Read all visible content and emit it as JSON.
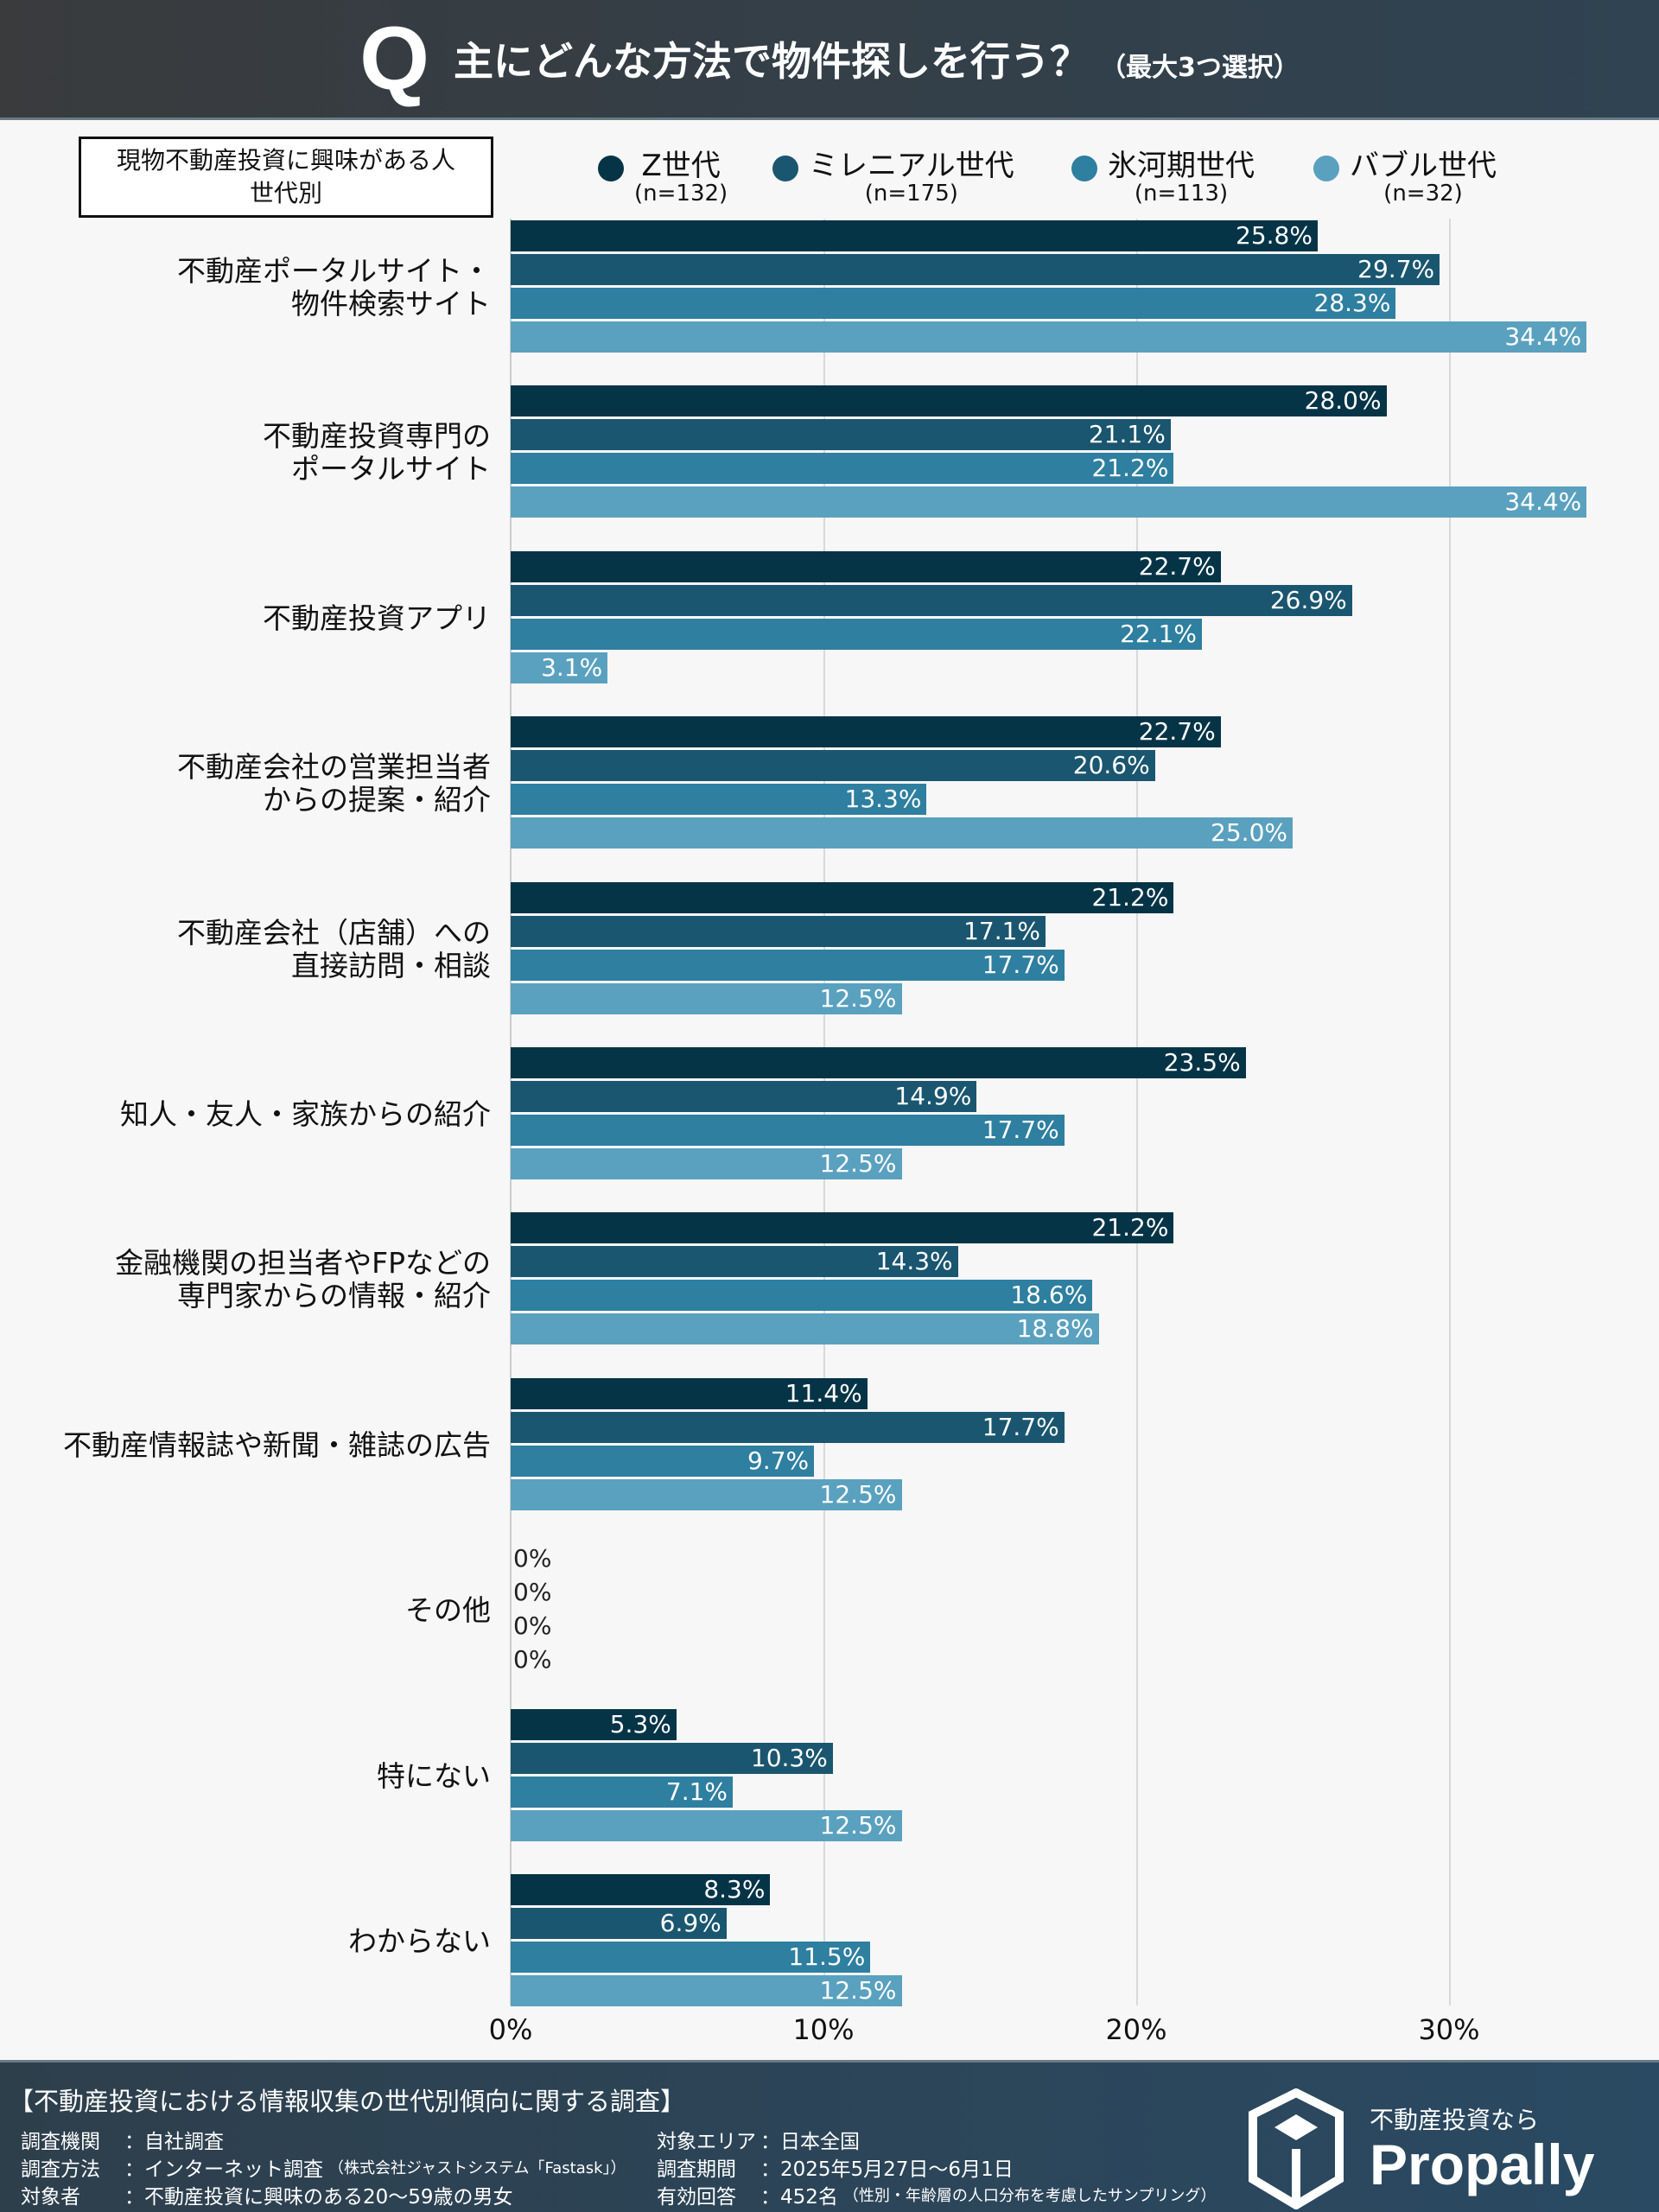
{
  "header": {
    "q": "Q",
    "title": "主にどんな方法で物件探しを行う？",
    "note": "（最大3つ選択）"
  },
  "legend_box": {
    "line1": "現物不動産投資に興味がある人",
    "line2": "世代別"
  },
  "chart_data": {
    "type": "bar",
    "orientation": "horizontal",
    "title": "主にどんな方法で物件探しを行う？",
    "xlim": [
      0,
      35
    ],
    "x_ticks": [
      "0%",
      "10%",
      "20%",
      "30%"
    ],
    "grid": true,
    "legend_placement": "top",
    "series": [
      {
        "name": "Z世代",
        "n": "(n=132)",
        "color": "#053447",
        "values": [
          25.8,
          28.0,
          22.7,
          22.7,
          21.2,
          23.5,
          21.2,
          11.4,
          0,
          5.3,
          8.3
        ]
      },
      {
        "name": "ミレニアル世代",
        "n": "(n=175)",
        "color": "#1a566f",
        "values": [
          29.7,
          21.1,
          26.9,
          20.6,
          17.1,
          14.9,
          14.3,
          17.7,
          0,
          10.3,
          6.9
        ]
      },
      {
        "name": "氷河期世代",
        "n": "(n=113)",
        "color": "#2e7fa0",
        "values": [
          28.3,
          21.2,
          22.1,
          13.3,
          17.7,
          17.7,
          18.6,
          9.7,
          0,
          7.1,
          11.5
        ]
      },
      {
        "name": "バブル世代",
        "n": "(n=32)",
        "color": "#5aa1bf",
        "values": [
          34.4,
          34.4,
          3.1,
          25.0,
          12.5,
          12.5,
          18.8,
          12.5,
          0,
          12.5,
          12.5
        ]
      }
    ],
    "categories": [
      [
        "不動産ポータルサイト・",
        "物件検索サイト"
      ],
      [
        "不動産投資専門の",
        "ポータルサイト"
      ],
      [
        "不動産投資アプリ"
      ],
      [
        "不動産会社の営業担当者",
        "からの提案・紹介"
      ],
      [
        "不動産会社（店舗）への",
        "直接訪問・相談"
      ],
      [
        "知人・友人・家族からの紹介"
      ],
      [
        "金融機関の担当者やFPなどの",
        "専門家からの情報・紹介"
      ],
      [
        "不動産情報誌や新聞・雑誌の広告"
      ],
      [
        "その他"
      ],
      [
        "特にない"
      ],
      [
        "わからない"
      ]
    ]
  },
  "footer": {
    "title": "【不動産投資における情報収集の世代別傾向に関する調査】",
    "left": [
      {
        "key": "調査機関",
        "value": "：自社調査",
        "note": ""
      },
      {
        "key": "調査方法",
        "value": "：インターネット調査",
        "note": "（株式会社ジャストシステム「Fastask」）"
      },
      {
        "key": "対象者",
        "value": "：不動産投資に興味のある20〜59歳の男女",
        "note": ""
      }
    ],
    "right": [
      {
        "key": "対象エリア",
        "value": "：日本全国",
        "note": ""
      },
      {
        "key": "調査期間",
        "value": "：2025年5月27日〜6月1日",
        "note": ""
      },
      {
        "key": "有効回答",
        "value": "：452名",
        "note": "（性別・年齢層の人口分布を考慮したサンプリング）"
      }
    ],
    "logo_tag": "不動産投資なら",
    "logo_name": "Propally"
  }
}
